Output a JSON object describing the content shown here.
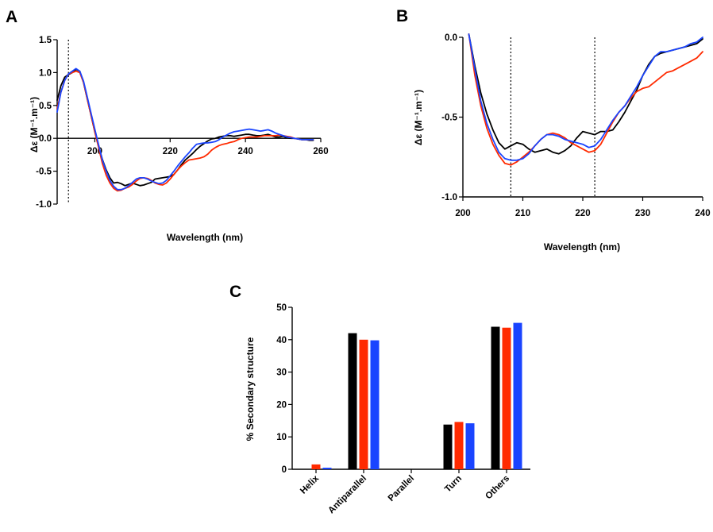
{
  "figure": {
    "panels": [
      {
        "letter": "A"
      },
      {
        "letter": "B"
      },
      {
        "letter": "C"
      }
    ]
  },
  "chart_data": [
    {
      "panel": "A",
      "type": "line",
      "xlabel": "Wavelength (nm)",
      "ylabel": "Δε (M⁻¹.m⁻¹)",
      "xlim": [
        190,
        260
      ],
      "ylim": [
        -1.0,
        1.5
      ],
      "xticks": [
        200,
        220,
        240,
        260
      ],
      "yticks": [
        -1.0,
        -0.5,
        0.0,
        0.5,
        1.0,
        1.5
      ],
      "reference_lines_x": [
        193
      ],
      "grid": false,
      "series": [
        {
          "color": "#000000",
          "x": [
            190,
            191,
            192,
            193,
            194,
            195,
            196,
            197,
            198,
            199,
            200,
            201,
            202,
            203,
            204,
            205,
            206,
            207,
            208,
            209,
            210,
            211,
            212,
            213,
            214,
            215,
            216,
            217,
            218,
            219,
            220,
            221,
            222,
            223,
            224,
            225,
            226,
            227,
            228,
            229,
            230,
            231,
            232,
            233,
            234,
            235,
            236,
            237,
            238,
            239,
            240,
            241,
            242,
            243,
            244,
            245,
            246,
            247,
            248,
            249,
            250,
            251,
            252,
            253,
            254,
            255,
            256,
            257,
            258
          ],
          "y": [
            0.58,
            0.8,
            0.93,
            0.97,
            1.0,
            1.05,
            1.02,
            0.85,
            0.6,
            0.35,
            0.1,
            -0.12,
            -0.32,
            -0.48,
            -0.6,
            -0.68,
            -0.67,
            -0.69,
            -0.72,
            -0.7,
            -0.68,
            -0.7,
            -0.72,
            -0.71,
            -0.69,
            -0.67,
            -0.62,
            -0.61,
            -0.6,
            -0.59,
            -0.58,
            -0.55,
            -0.48,
            -0.4,
            -0.33,
            -0.28,
            -0.23,
            -0.17,
            -0.12,
            -0.08,
            -0.04,
            -0.01,
            0.0,
            0.02,
            0.03,
            0.04,
            0.04,
            0.03,
            0.04,
            0.05,
            0.06,
            0.06,
            0.05,
            0.04,
            0.04,
            0.05,
            0.06,
            0.04,
            0.02,
            0.02,
            0.03,
            0.01,
            0.0,
            0.0,
            -0.01,
            -0.02,
            -0.02,
            -0.03,
            -0.03
          ]
        },
        {
          "color": "#ff2a00",
          "x": [
            190,
            191,
            192,
            193,
            194,
            195,
            196,
            197,
            198,
            199,
            200,
            201,
            202,
            203,
            204,
            205,
            206,
            207,
            208,
            209,
            210,
            211,
            212,
            213,
            214,
            215,
            216,
            217,
            218,
            219,
            220,
            221,
            222,
            223,
            224,
            225,
            226,
            227,
            228,
            229,
            230,
            231,
            232,
            233,
            234,
            235,
            236,
            237,
            238,
            239,
            240,
            241,
            242,
            243,
            244,
            245,
            246,
            247,
            248,
            249,
            250,
            251,
            252,
            253,
            254,
            255,
            256,
            257,
            258
          ],
          "y": [
            0.45,
            0.7,
            0.88,
            0.98,
            1.0,
            1.02,
            1.0,
            0.85,
            0.6,
            0.35,
            0.1,
            -0.14,
            -0.38,
            -0.56,
            -0.68,
            -0.76,
            -0.8,
            -0.79,
            -0.76,
            -0.74,
            -0.7,
            -0.65,
            -0.61,
            -0.6,
            -0.61,
            -0.64,
            -0.68,
            -0.7,
            -0.71,
            -0.68,
            -0.62,
            -0.55,
            -0.48,
            -0.42,
            -0.37,
            -0.33,
            -0.32,
            -0.31,
            -0.3,
            -0.28,
            -0.24,
            -0.18,
            -0.14,
            -0.11,
            -0.09,
            -0.08,
            -0.06,
            -0.05,
            -0.02,
            0.0,
            0.01,
            0.02,
            0.02,
            0.02,
            0.03,
            0.04,
            0.04,
            0.04,
            0.04,
            0.05,
            0.04,
            0.03,
            0.02,
            0.0,
            -0.01,
            -0.02,
            -0.02,
            -0.02,
            -0.02
          ]
        },
        {
          "color": "#1a44ff",
          "x": [
            190,
            191,
            192,
            193,
            194,
            195,
            196,
            197,
            198,
            199,
            200,
            201,
            202,
            203,
            204,
            205,
            206,
            207,
            208,
            209,
            210,
            211,
            212,
            213,
            214,
            215,
            216,
            217,
            218,
            219,
            220,
            221,
            222,
            223,
            224,
            225,
            226,
            227,
            228,
            229,
            230,
            231,
            232,
            233,
            234,
            235,
            236,
            237,
            238,
            239,
            240,
            241,
            242,
            243,
            244,
            245,
            246,
            247,
            248,
            249,
            250,
            251,
            252,
            253,
            254,
            255,
            256,
            257,
            258
          ],
          "y": [
            0.4,
            0.7,
            0.88,
            0.98,
            1.02,
            1.06,
            1.02,
            0.87,
            0.63,
            0.38,
            0.14,
            -0.1,
            -0.33,
            -0.5,
            -0.64,
            -0.73,
            -0.78,
            -0.78,
            -0.76,
            -0.72,
            -0.67,
            -0.62,
            -0.6,
            -0.6,
            -0.62,
            -0.65,
            -0.67,
            -0.69,
            -0.68,
            -0.64,
            -0.57,
            -0.5,
            -0.42,
            -0.35,
            -0.28,
            -0.22,
            -0.15,
            -0.09,
            -0.08,
            -0.07,
            -0.07,
            -0.06,
            -0.05,
            -0.02,
            0.02,
            0.05,
            0.08,
            0.1,
            0.11,
            0.12,
            0.13,
            0.14,
            0.13,
            0.12,
            0.11,
            0.12,
            0.13,
            0.11,
            0.08,
            0.06,
            0.04,
            0.02,
            0.01,
            0.0,
            -0.01,
            -0.02,
            -0.02,
            -0.02,
            -0.02
          ]
        }
      ]
    },
    {
      "panel": "B",
      "type": "line",
      "xlabel": "Wavelength (nm)",
      "ylabel": "Δε (M⁻¹.m⁻¹)",
      "xlim": [
        200,
        240
      ],
      "ylim": [
        -1.0,
        0.0
      ],
      "xticks": [
        200,
        210,
        220,
        230,
        240
      ],
      "yticks": [
        -1.0,
        -0.5,
        0.0
      ],
      "reference_lines_x": [
        208,
        222
      ],
      "grid": false,
      "series": [
        {
          "color": "#000000",
          "x": [
            201,
            202,
            203,
            204,
            205,
            206,
            207,
            208,
            209,
            210,
            211,
            212,
            213,
            214,
            215,
            216,
            217,
            218,
            219,
            220,
            221,
            222,
            223,
            224,
            225,
            226,
            227,
            228,
            229,
            230,
            231,
            232,
            233,
            234,
            235,
            236,
            237,
            238,
            239,
            240
          ],
          "y": [
            0.02,
            -0.18,
            -0.35,
            -0.48,
            -0.58,
            -0.66,
            -0.7,
            -0.68,
            -0.66,
            -0.67,
            -0.7,
            -0.72,
            -0.71,
            -0.7,
            -0.72,
            -0.73,
            -0.71,
            -0.68,
            -0.63,
            -0.59,
            -0.6,
            -0.61,
            -0.59,
            -0.59,
            -0.58,
            -0.53,
            -0.47,
            -0.4,
            -0.33,
            -0.24,
            -0.17,
            -0.12,
            -0.1,
            -0.09,
            -0.08,
            -0.07,
            -0.06,
            -0.05,
            -0.04,
            -0.01
          ]
        },
        {
          "color": "#ff2a00",
          "x": [
            201,
            202,
            203,
            204,
            205,
            206,
            207,
            208,
            209,
            210,
            211,
            212,
            213,
            214,
            215,
            216,
            217,
            218,
            219,
            220,
            221,
            222,
            223,
            224,
            225,
            226,
            227,
            228,
            229,
            230,
            231,
            232,
            233,
            234,
            235,
            236,
            237,
            238,
            239,
            240
          ],
          "y": [
            0.02,
            -0.24,
            -0.43,
            -0.57,
            -0.67,
            -0.74,
            -0.79,
            -0.8,
            -0.78,
            -0.75,
            -0.72,
            -0.68,
            -0.64,
            -0.61,
            -0.6,
            -0.61,
            -0.63,
            -0.66,
            -0.68,
            -0.7,
            -0.72,
            -0.71,
            -0.67,
            -0.6,
            -0.53,
            -0.47,
            -0.43,
            -0.38,
            -0.34,
            -0.32,
            -0.31,
            -0.28,
            -0.25,
            -0.22,
            -0.21,
            -0.19,
            -0.17,
            -0.15,
            -0.13,
            -0.09
          ]
        },
        {
          "color": "#1a44ff",
          "x": [
            201,
            202,
            203,
            204,
            205,
            206,
            207,
            208,
            209,
            210,
            211,
            212,
            213,
            214,
            215,
            216,
            217,
            218,
            219,
            220,
            221,
            222,
            223,
            224,
            225,
            226,
            227,
            228,
            229,
            230,
            231,
            232,
            233,
            234,
            235,
            236,
            237,
            238,
            239,
            240
          ],
          "y": [
            0.02,
            -0.2,
            -0.4,
            -0.54,
            -0.64,
            -0.72,
            -0.76,
            -0.77,
            -0.77,
            -0.76,
            -0.73,
            -0.68,
            -0.64,
            -0.61,
            -0.61,
            -0.62,
            -0.64,
            -0.65,
            -0.66,
            -0.67,
            -0.69,
            -0.68,
            -0.64,
            -0.58,
            -0.52,
            -0.47,
            -0.43,
            -0.37,
            -0.31,
            -0.24,
            -0.18,
            -0.12,
            -0.09,
            -0.09,
            -0.08,
            -0.07,
            -0.06,
            -0.04,
            -0.03,
            0.0
          ]
        }
      ]
    },
    {
      "panel": "C",
      "type": "bar",
      "ylabel": "% Secondary structure",
      "ylim": [
        0,
        50
      ],
      "yticks": [
        0,
        10,
        20,
        30,
        40,
        50
      ],
      "categories": [
        "Helix",
        "Antiparallel",
        "Parallel",
        "Turn",
        "Others"
      ],
      "grid": false,
      "series": [
        {
          "color": "#000000",
          "values": [
            0,
            42.0,
            0,
            13.8,
            44.0
          ]
        },
        {
          "color": "#ff2a00",
          "values": [
            1.5,
            40.0,
            0,
            14.6,
            43.7
          ]
        },
        {
          "color": "#1a44ff",
          "values": [
            0.5,
            39.8,
            0,
            14.2,
            45.2
          ]
        }
      ]
    }
  ]
}
